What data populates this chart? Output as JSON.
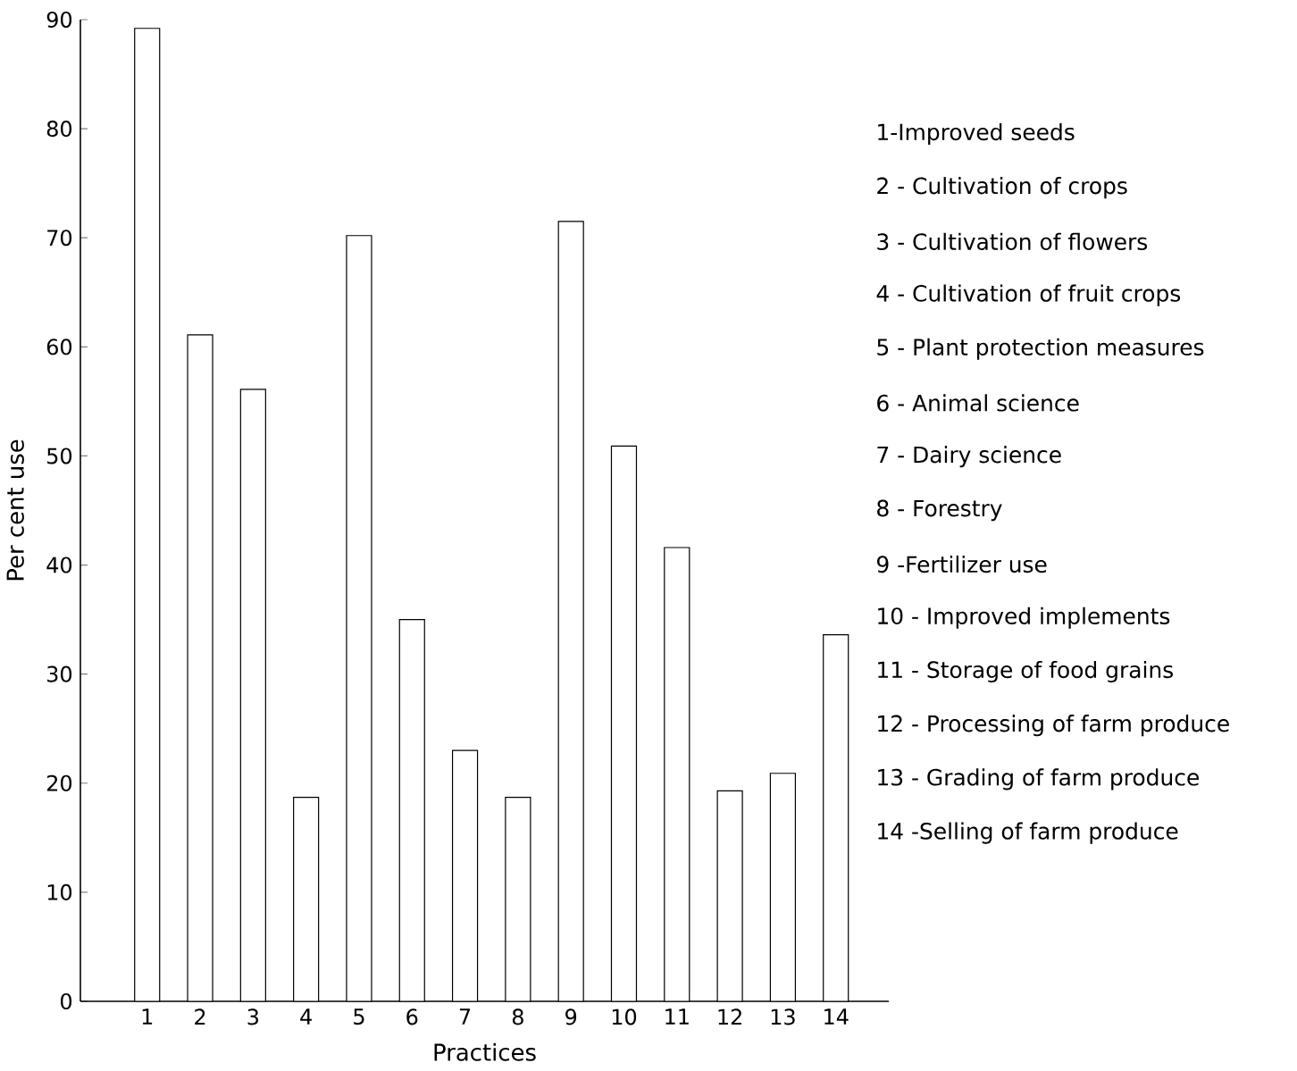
{
  "chart_data": {
    "type": "bar",
    "xlabel": "Practices",
    "ylabel": "Per cent use",
    "categories": [
      "1",
      "2",
      "3",
      "4",
      "5",
      "6",
      "7",
      "8",
      "9",
      "10",
      "11",
      "12",
      "13",
      "14"
    ],
    "values": [
      89.2,
      61.1,
      56.1,
      18.7,
      70.2,
      35.0,
      23.0,
      18.7,
      71.5,
      50.9,
      41.6,
      19.3,
      20.9,
      33.6
    ],
    "color": "#ffffff",
    "ylim": [
      0,
      90
    ],
    "yticks": [
      0,
      10,
      20,
      30,
      40,
      50,
      60,
      70,
      80,
      90
    ],
    "annotations": [
      "1-Improved seeds",
      "2 - Cultivation of crops",
      "3 - Cultivation of flowers",
      "4 - Cultivation of fruit crops",
      "5 - Plant protection measures",
      "6 - Animal science",
      "7 - Dairy science",
      "8 - Forestry",
      "9 -Fertilizer use",
      "10 - Improved implements",
      "11 - Storage of food grains",
      "12 - Processing of farm produce",
      "13 - Grading of farm produce",
      "14 -Selling of farm produce"
    ]
  }
}
